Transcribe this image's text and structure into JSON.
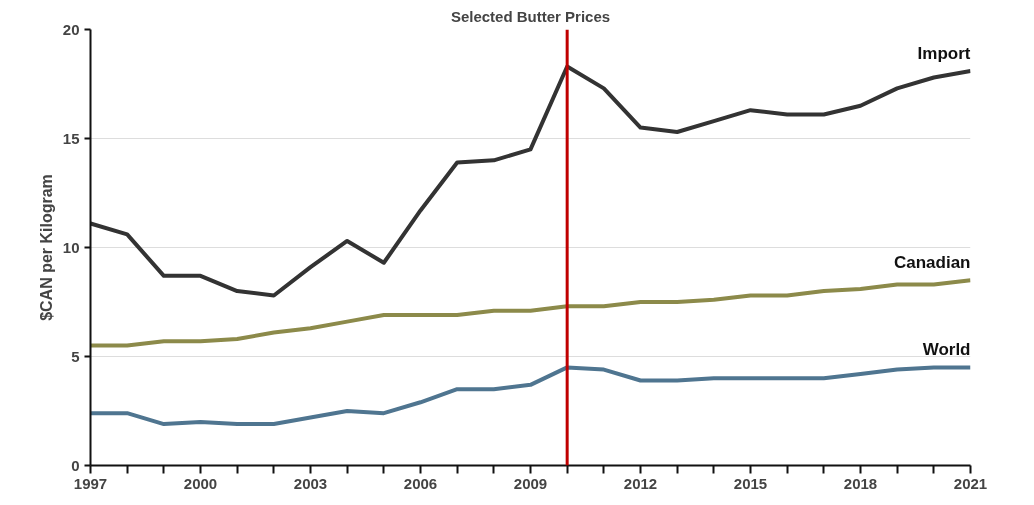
{
  "chart_data": {
    "type": "line",
    "title": "Selected Butter Prices",
    "ylabel": "$CAN per Kilogram",
    "x": [
      1997,
      1998,
      1999,
      2000,
      2001,
      2002,
      2003,
      2004,
      2005,
      2006,
      2007,
      2008,
      2009,
      2010,
      2011,
      2012,
      2013,
      2014,
      2015,
      2016,
      2017,
      2018,
      2019,
      2020,
      2021
    ],
    "series": [
      {
        "name": "Import",
        "color": "#333333",
        "values": [
          11.1,
          10.6,
          8.7,
          8.7,
          8.0,
          7.8,
          9.1,
          10.3,
          9.3,
          11.7,
          13.9,
          14.0,
          14.5,
          18.3,
          17.3,
          15.5,
          15.3,
          15.8,
          16.3,
          16.1,
          16.1,
          16.5,
          17.3,
          17.8,
          18.1
        ]
      },
      {
        "name": "Canadian",
        "color": "#8c8a4a",
        "values": [
          5.5,
          5.5,
          5.7,
          5.7,
          5.8,
          6.1,
          6.3,
          6.6,
          6.9,
          6.9,
          6.9,
          7.1,
          7.1,
          7.3,
          7.3,
          7.5,
          7.5,
          7.6,
          7.8,
          7.8,
          8.0,
          8.1,
          8.3,
          8.3,
          8.5
        ]
      },
      {
        "name": "World",
        "color": "#4f7590",
        "values": [
          2.4,
          2.4,
          1.9,
          2.0,
          1.9,
          1.9,
          2.2,
          2.5,
          2.4,
          2.9,
          3.5,
          3.5,
          3.7,
          4.5,
          4.4,
          3.9,
          3.9,
          4.0,
          4.0,
          4.0,
          4.0,
          4.2,
          4.4,
          4.5,
          4.5
        ]
      }
    ],
    "xlim": [
      1997,
      2021
    ],
    "xticks": [
      1997,
      {
        "value": 1998,
        "label": null
      },
      {
        "value": 1999,
        "label": null
      },
      2000,
      {
        "value": 2001,
        "label": null
      },
      {
        "value": 2002,
        "label": null
      },
      2003,
      {
        "value": 2004,
        "label": null
      },
      {
        "value": 2005,
        "label": null
      },
      2006,
      {
        "value": 2007,
        "label": null
      },
      {
        "value": 2008,
        "label": null
      },
      2009,
      {
        "value": 2010,
        "label": null
      },
      {
        "value": 2011,
        "label": null
      },
      2012,
      {
        "value": 2013,
        "label": null
      },
      {
        "value": 2014,
        "label": null
      },
      2015,
      {
        "value": 2016,
        "label": null
      },
      {
        "value": 2017,
        "label": null
      },
      2018,
      {
        "value": 2019,
        "label": null
      },
      {
        "value": 2020,
        "label": null
      },
      2021
    ],
    "ylim": [
      0,
      20
    ],
    "yticks": [
      0,
      5,
      10,
      15,
      20
    ],
    "grid": "y",
    "legend": false,
    "marker": "none",
    "line_style": "solid",
    "ref_lines": [
      {
        "axis": "x",
        "value": 2010,
        "color": "#c00000"
      }
    ]
  }
}
